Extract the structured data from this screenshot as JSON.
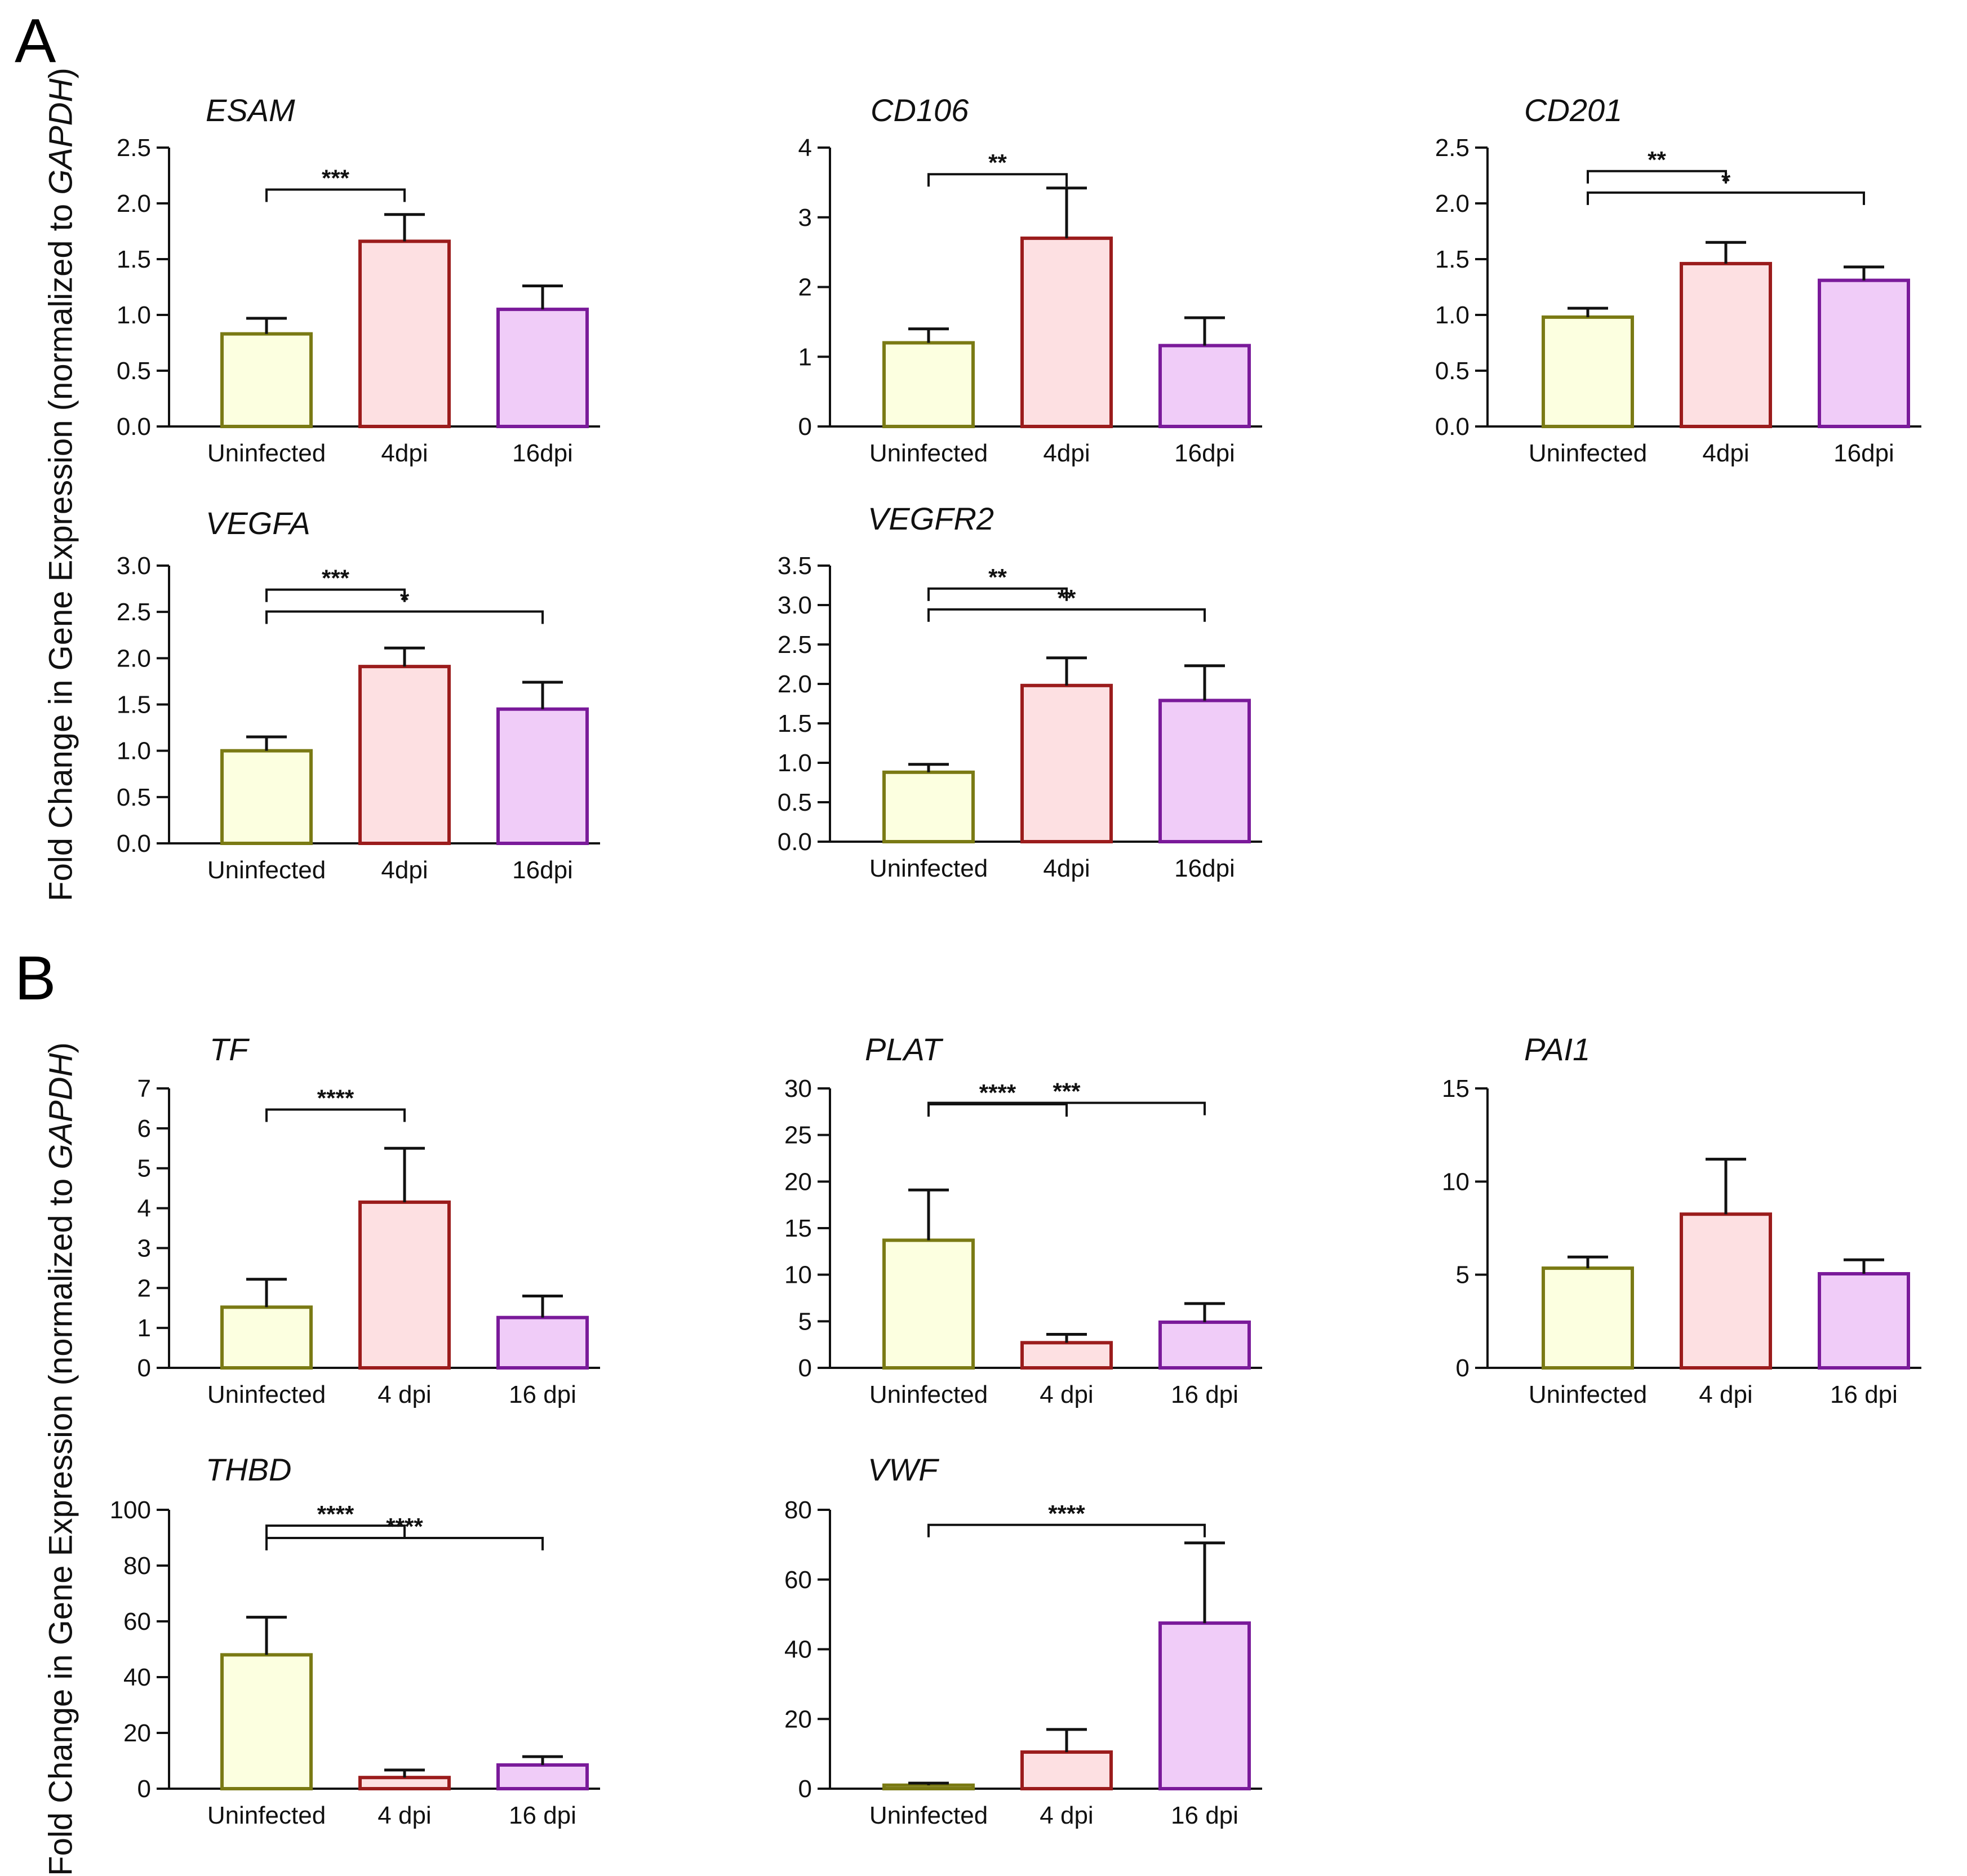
{
  "panels": {
    "a": {
      "letter": "A",
      "ylabel": "Fold Change in Gene Expression (normalized to ",
      "ylabel_italic": "GAPDH",
      "ylabel_end": ")"
    },
    "b": {
      "letter": "B",
      "ylabel": "Fold Change in Gene Expression (normalized to ",
      "ylabel_italic": "GAPDH",
      "ylabel_end": ")"
    }
  },
  "colors": {
    "uninfected_fill": "#fcffe0",
    "uninfected_edge": "#7a7a14",
    "dpi4_fill": "#fde0e2",
    "dpi4_edge": "#9b1c1c",
    "dpi16_fill": "#f0ccf8",
    "dpi16_edge": "#7a1a9a"
  },
  "chart_data": [
    {
      "id": "esam",
      "panel": "A",
      "type": "bar",
      "title": "ESAM",
      "categories": [
        "Uninfected",
        "4dpi",
        "16dpi"
      ],
      "values": [
        0.83,
        1.66,
        1.05
      ],
      "errors": [
        0.14,
        0.24,
        0.21
      ],
      "ylim": [
        0,
        2.5
      ],
      "yticks": [
        "0.0",
        "0.5",
        "1.0",
        "1.5",
        "2.0",
        "2.5"
      ],
      "ytick_values": [
        0,
        0.5,
        1.0,
        1.5,
        2.0,
        2.5
      ],
      "significance": [
        {
          "from": 0,
          "to": 1,
          "level": 0.5,
          "label": "***"
        }
      ]
    },
    {
      "id": "cd106",
      "panel": "A",
      "type": "bar",
      "title": "CD106",
      "categories": [
        "Uninfected",
        "4dpi",
        "16dpi"
      ],
      "values": [
        1.2,
        2.7,
        1.16
      ],
      "errors": [
        0.2,
        0.72,
        0.4
      ],
      "ylim": [
        0,
        4
      ],
      "yticks": [
        "0",
        "1",
        "2",
        "3",
        "4"
      ],
      "ytick_values": [
        0,
        1,
        2,
        3,
        4
      ],
      "significance": [
        {
          "from": 0,
          "to": 1,
          "level": 0.4,
          "label": "**"
        }
      ]
    },
    {
      "id": "cd201",
      "panel": "A",
      "type": "bar",
      "title": "CD201",
      "categories": [
        "Uninfected",
        "4dpi",
        "16dpi"
      ],
      "values": [
        0.98,
        1.46,
        1.31
      ],
      "errors": [
        0.08,
        0.19,
        0.12
      ],
      "ylim": [
        0,
        2.5
      ],
      "yticks": [
        "0.0",
        "0.5",
        "1.0",
        "1.5",
        "2.0",
        "2.5"
      ],
      "ytick_values": [
        0,
        0.5,
        1.0,
        1.5,
        2.0,
        2.5
      ],
      "significance": [
        {
          "from": 0,
          "to": 1,
          "level": 0.2,
          "label": "**"
        },
        {
          "from": 0,
          "to": 2,
          "level": 0.55,
          "label": "*"
        }
      ]
    },
    {
      "id": "vegfa",
      "panel": "A",
      "type": "bar",
      "title": "VEGFA",
      "categories": [
        "Uninfected",
        "4dpi",
        "16dpi"
      ],
      "values": [
        1.0,
        1.91,
        1.45
      ],
      "errors": [
        0.15,
        0.2,
        0.29
      ],
      "ylim": [
        0,
        3.0
      ],
      "yticks": [
        "0.0",
        "0.5",
        "1.0",
        "1.5",
        "2.0",
        "2.5",
        "3.0"
      ],
      "ytick_values": [
        0,
        0.5,
        1.0,
        1.5,
        2.0,
        2.5,
        3.0
      ],
      "significance": [
        {
          "from": 0,
          "to": 1,
          "level": 0.25,
          "label": "***"
        },
        {
          "from": 0,
          "to": 2,
          "level": 0.68,
          "label": "*"
        }
      ]
    },
    {
      "id": "vegfr2",
      "panel": "A",
      "type": "bar",
      "title": "VEGFR2",
      "categories": [
        "Uninfected",
        "4dpi",
        "16dpi"
      ],
      "values": [
        0.88,
        1.98,
        1.79
      ],
      "errors": [
        0.1,
        0.35,
        0.44
      ],
      "ylim": [
        0,
        3.5
      ],
      "yticks": [
        "0.0",
        "0.5",
        "1.0",
        "1.5",
        "2.0",
        "2.5",
        "3.0",
        "3.5"
      ],
      "ytick_values": [
        0,
        0.5,
        1.0,
        1.5,
        2.0,
        2.5,
        3.0,
        3.5
      ],
      "significance": [
        {
          "from": 0,
          "to": 1,
          "level": 0.27,
          "label": "**"
        },
        {
          "from": 0,
          "to": 2,
          "level": 0.75,
          "label": "**"
        }
      ]
    },
    {
      "id": "tf",
      "panel": "B",
      "type": "bar",
      "title": "TF",
      "categories": [
        "Uninfected",
        "4 dpi",
        "16 dpi"
      ],
      "values": [
        1.52,
        4.15,
        1.26
      ],
      "errors": [
        0.7,
        1.35,
        0.54
      ],
      "ylim": [
        0,
        7
      ],
      "yticks": [
        "0",
        "1",
        "2",
        "3",
        "4",
        "5",
        "6",
        "7"
      ],
      "ytick_values": [
        0,
        1,
        2,
        3,
        4,
        5,
        6,
        7
      ],
      "significance": [
        {
          "from": 0,
          "to": 1,
          "level": 0.45,
          "label": "****"
        }
      ]
    },
    {
      "id": "plat",
      "panel": "B",
      "type": "bar",
      "title": "PLAT",
      "categories": [
        "Uninfected",
        "4 dpi",
        "16 dpi"
      ],
      "values": [
        13.7,
        2.7,
        4.9
      ],
      "errors": [
        5.4,
        0.9,
        2.0
      ],
      "ylim": [
        0,
        30
      ],
      "yticks": [
        "0",
        "5",
        "10",
        "15",
        "20",
        "25",
        "30"
      ],
      "ytick_values": [
        0,
        5,
        10,
        15,
        20,
        25,
        30
      ],
      "significance": [
        {
          "from": 0,
          "to": 1,
          "level": 0.9,
          "label": "****"
        },
        {
          "from": 0,
          "to": 2,
          "level": 0.62,
          "label": "***"
        }
      ]
    },
    {
      "id": "pai1",
      "panel": "B",
      "type": "bar",
      "title": "PAI1",
      "categories": [
        "Uninfected",
        "4 dpi",
        "16 dpi"
      ],
      "values": [
        5.35,
        8.25,
        5.05
      ],
      "errors": [
        0.6,
        2.95,
        0.75
      ],
      "ylim": [
        0,
        15
      ],
      "yticks": [
        "0",
        "5",
        "10",
        "15"
      ],
      "ytick_values": [
        0,
        5,
        10,
        15
      ],
      "significance": []
    },
    {
      "id": "thbd",
      "panel": "B",
      "type": "bar",
      "title": "THBD",
      "categories": [
        "Uninfected",
        "4 dpi",
        "16 dpi"
      ],
      "values": [
        48,
        4,
        8.5
      ],
      "errors": [
        13.5,
        2.7,
        3.0
      ],
      "ylim": [
        0,
        100
      ],
      "yticks": [
        "0",
        "20",
        "40",
        "60",
        "80",
        "100"
      ],
      "ytick_values": [
        0,
        20,
        40,
        60,
        80,
        100
      ],
      "significance": [
        {
          "from": 0,
          "to": 1,
          "level": 3,
          "label": "****"
        },
        {
          "from": 0,
          "to": 2,
          "level": 11,
          "label": "****"
        }
      ]
    },
    {
      "id": "vwf",
      "panel": "B",
      "type": "bar",
      "title": "VWF",
      "categories": [
        "Uninfected",
        "4 dpi",
        "16 dpi"
      ],
      "values": [
        1.0,
        10.5,
        47.5
      ],
      "errors": [
        0.6,
        6.5,
        23.0
      ],
      "ylim": [
        0,
        80
      ],
      "yticks": [
        "0",
        "20",
        "40",
        "60",
        "80"
      ],
      "ytick_values": [
        0,
        20,
        40,
        60,
        80
      ],
      "significance": [
        {
          "from": 0,
          "to": 2,
          "level": 2,
          "label": "****"
        }
      ]
    }
  ]
}
